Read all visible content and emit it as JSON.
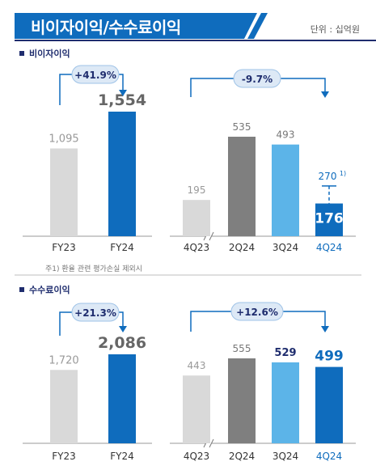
{
  "header": {
    "title": "비이자이익/수수료이익",
    "unit": "단위 : 십억원"
  },
  "colors": {
    "primary_blue": "#0f6cbd",
    "gray_light": "#d9d9d9",
    "gray_dark": "#7f7f7f",
    "sky": "#5cb4e8",
    "navy": "#1f2d6e"
  },
  "chart_data": [
    {
      "type": "bar",
      "section": "비이자이익",
      "categories": [
        "FY23",
        "FY24"
      ],
      "values": [
        1095,
        1554
      ],
      "labels": [
        "1,095",
        "1,554"
      ],
      "change_label": "+41.9%"
    },
    {
      "type": "bar",
      "section": "비이자이익",
      "categories": [
        "4Q23",
        "2Q24",
        "3Q24",
        "4Q24"
      ],
      "values": [
        195,
        535,
        493,
        176
      ],
      "labels": [
        "195",
        "535",
        "493",
        "176"
      ],
      "extra_label": "270",
      "extra_sup": "1)",
      "extra_value": 270,
      "change_label": "-9.7%"
    },
    {
      "type": "bar",
      "section": "수수료이익",
      "categories": [
        "FY23",
        "FY24"
      ],
      "values": [
        1720,
        2086
      ],
      "labels": [
        "1,720",
        "2,086"
      ],
      "change_label": "+21.3%"
    },
    {
      "type": "bar",
      "section": "수수료이익",
      "categories": [
        "4Q23",
        "2Q24",
        "3Q24",
        "4Q24"
      ],
      "values": [
        443,
        555,
        529,
        499
      ],
      "labels": [
        "443",
        "555",
        "529",
        "499"
      ],
      "change_label": "+12.6%"
    }
  ],
  "sections": {
    "nonint": "비이자이익",
    "fee": "수수료이익"
  },
  "footnote": "주1) 환율 관련 평가손실 제외시"
}
